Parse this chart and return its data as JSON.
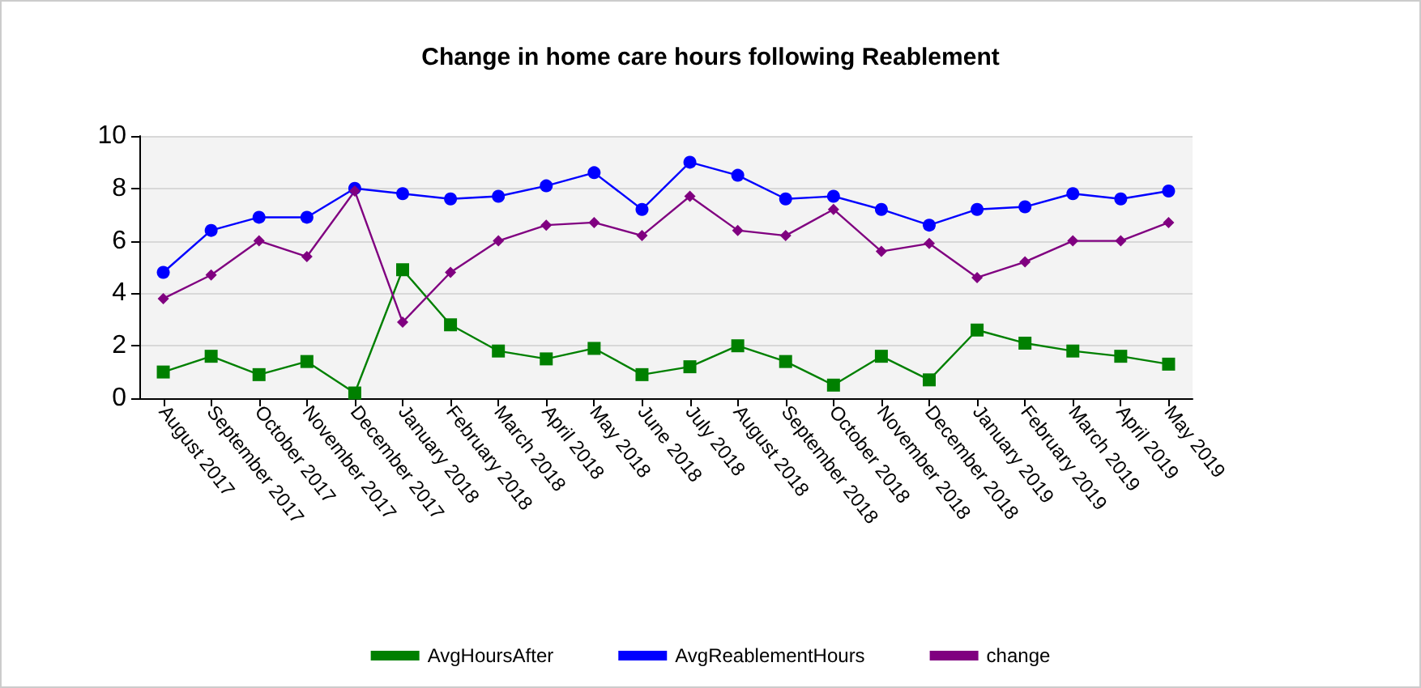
{
  "chart_data": {
    "type": "line",
    "title": "Change in home care hours following Reablement",
    "categories": [
      "August 2017",
      "September 2017",
      "October 2017",
      "November 2017",
      "December 2017",
      "January 2018",
      "February 2018",
      "March 2018",
      "April 2018",
      "May 2018",
      "June 2018",
      "July 2018",
      "August 2018",
      "September 2018",
      "October 2018",
      "November 2018",
      "December 2018",
      "January 2019",
      "February 2019",
      "March 2019",
      "April 2019",
      "May 2019"
    ],
    "series": [
      {
        "name": "AvgHoursAfter",
        "color": "#008000",
        "marker": "square",
        "values": [
          1.0,
          1.6,
          0.9,
          1.4,
          0.2,
          4.9,
          2.8,
          1.8,
          1.5,
          1.9,
          0.9,
          1.2,
          2.0,
          1.4,
          0.5,
          1.6,
          0.7,
          2.6,
          2.1,
          1.8,
          1.6,
          1.3
        ]
      },
      {
        "name": "AvgReablementHours",
        "color": "#0000ff",
        "marker": "circle",
        "values": [
          4.8,
          6.4,
          6.9,
          6.9,
          8.0,
          7.8,
          7.6,
          7.7,
          8.1,
          8.6,
          7.2,
          9.0,
          8.5,
          7.6,
          7.7,
          7.2,
          6.6,
          7.2,
          7.3,
          7.8,
          7.6,
          7.9
        ]
      },
      {
        "name": "change",
        "color": "#800080",
        "marker": "diamond",
        "values": [
          3.8,
          4.7,
          6.0,
          5.4,
          7.9,
          2.9,
          4.8,
          6.0,
          6.6,
          6.7,
          6.2,
          7.7,
          6.4,
          6.2,
          7.2,
          5.6,
          5.9,
          4.6,
          5.2,
          6.0,
          6.0,
          6.7
        ]
      }
    ],
    "ylim": [
      0,
      10
    ],
    "yticks": [
      0,
      2,
      4,
      6,
      8,
      10
    ],
    "grid": "y",
    "legend": "bottom"
  }
}
